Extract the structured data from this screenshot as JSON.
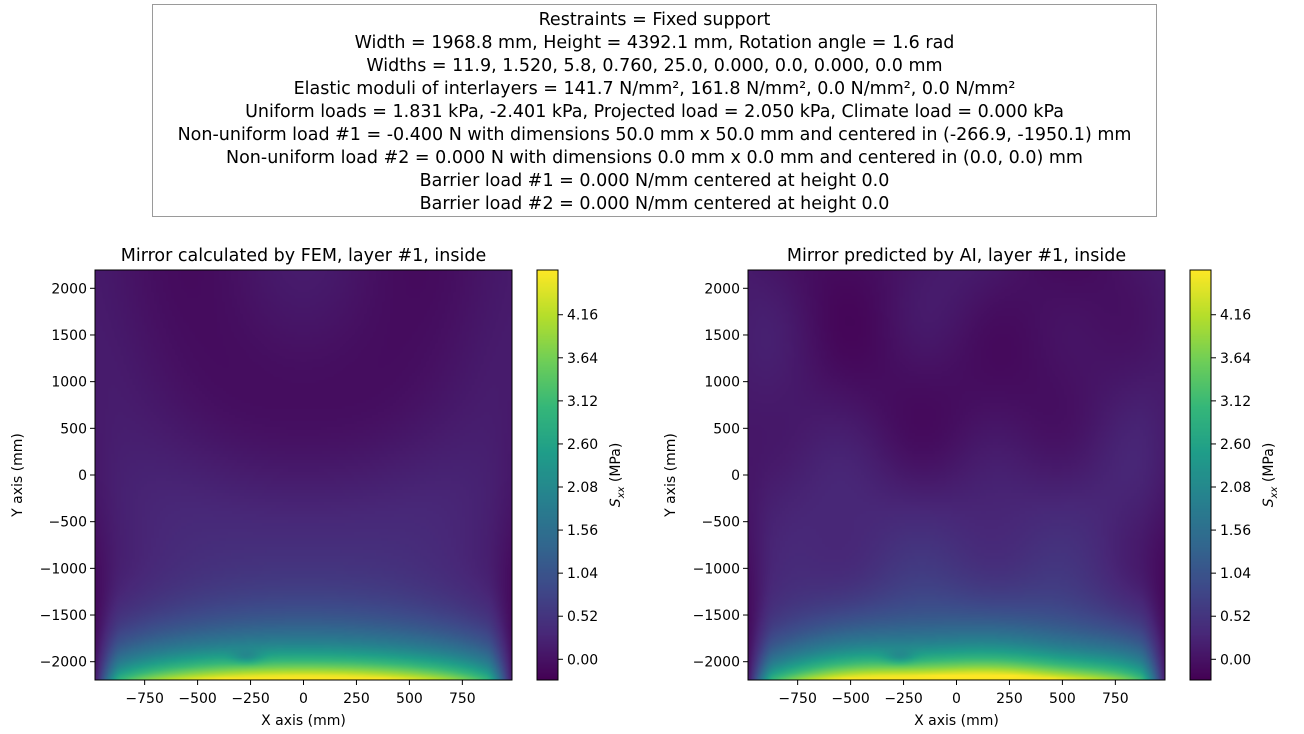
{
  "info_box": {
    "lines": [
      "Restraints = Fixed support",
      "Width = 1968.8 mm,     Height = 4392.1 mm,     Rotation angle = 1.6 rad",
      "Widths = 11.9, 1.520, 5.8, 0.760, 25.0, 0.000, 0.0, 0.000, 0.0 mm",
      "Elastic moduli of interlayers = 141.7 N/mm²,  161.8 N/mm²,  0.0 N/mm²,  0.0 N/mm²",
      "Uniform loads = 1.831 kPa, -2.401 kPa,     Projected load = 2.050 kPa,     Climate load = 0.000 kPa",
      "Non-uniform load #1 = -0.400 N with dimensions 50.0 mm x 50.0 mm and centered in (-266.9, -1950.1) mm",
      "Non-uniform load #2 = 0.000 N with dimensions 0.0 mm x 0.0 mm and centered in (0.0, 0.0) mm",
      "Barrier load #1 = 0.000 N/mm centered at height 0.0",
      "Barrier load #2 = 0.000 N/mm centered at height 0.0"
    ]
  },
  "colors": {
    "viridis": [
      "#440154",
      "#482878",
      "#3e4989",
      "#31688e",
      "#26828e",
      "#1f9e89",
      "#35b779",
      "#6ece58",
      "#b5de2b",
      "#fde725"
    ]
  },
  "chart_data": [
    {
      "type": "heatmap",
      "title": "Mirror calculated by FEM, layer #1, inside",
      "xlabel": "X axis (mm)",
      "ylabel": "Y axis (mm)",
      "xlim": [
        -984.4,
        984.4
      ],
      "ylim": [
        -2196.05,
        2196.05
      ],
      "xticks": [
        -750,
        -500,
        -250,
        0,
        250,
        500,
        750
      ],
      "xtick_labels": [
        "−750",
        "−500",
        "−250",
        "0",
        "250",
        "500",
        "750"
      ],
      "yticks": [
        2000,
        1500,
        1000,
        500,
        0,
        -500,
        -1000,
        -1500,
        -2000
      ],
      "ytick_labels": [
        "2000",
        "1500",
        "1000",
        "500",
        "0",
        "−500",
        "−1000",
        "−1500",
        "−2000"
      ],
      "colorbar": {
        "label": "S",
        "label_sub": "xx",
        "label_unit": "(MPa)",
        "range": [
          -0.25,
          4.7
        ],
        "ticks": [
          4.16,
          3.64,
          3.12,
          2.6,
          2.08,
          1.56,
          1.04,
          0.52,
          0.0
        ],
        "tick_labels": [
          "4.16",
          "3.64",
          "3.12",
          "2.60",
          "2.08",
          "1.56",
          "1.04",
          "0.52",
          "0.00"
        ]
      },
      "field": {
        "peak_value": 4.6,
        "min_value": -0.15,
        "local_feature": [
          -266.9,
          -1950.1
        ]
      }
    },
    {
      "type": "heatmap",
      "title": "Mirror predicted by AI, layer #1, inside",
      "xlabel": "X axis (mm)",
      "ylabel": "Y axis (mm)",
      "xlim": [
        -984.4,
        984.4
      ],
      "ylim": [
        -2196.05,
        2196.05
      ],
      "xticks": [
        -750,
        -500,
        -250,
        0,
        250,
        500,
        750
      ],
      "xtick_labels": [
        "−750",
        "−500",
        "−250",
        "0",
        "250",
        "500",
        "750"
      ],
      "yticks": [
        2000,
        1500,
        1000,
        500,
        0,
        -500,
        -1000,
        -1500,
        -2000
      ],
      "ytick_labels": [
        "2000",
        "1500",
        "1000",
        "500",
        "0",
        "−500",
        "−1000",
        "−1500",
        "−2000"
      ],
      "colorbar": {
        "label": "S",
        "label_sub": "xx",
        "label_unit": "(MPa)",
        "range": [
          -0.25,
          4.7
        ],
        "ticks": [
          4.16,
          3.64,
          3.12,
          2.6,
          2.08,
          1.56,
          1.04,
          0.52,
          0.0
        ],
        "tick_labels": [
          "4.16",
          "3.64",
          "3.12",
          "2.60",
          "2.08",
          "1.56",
          "1.04",
          "0.52",
          "0.00"
        ]
      },
      "field": {
        "peak_value": 4.7,
        "min_value": -0.2,
        "local_feature": [
          -266.9,
          -1950.1
        ]
      }
    }
  ]
}
